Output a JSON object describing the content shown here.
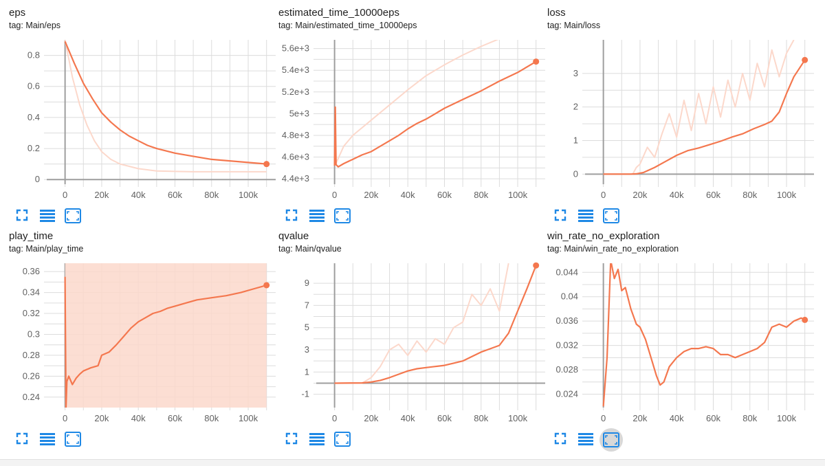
{
  "colors": {
    "smoothed": "#f4774e",
    "raw": "#fcd8cb",
    "grid": "#dcdcdc",
    "axis": "#9e9e9e",
    "toolbar_blue": "#1e88e5"
  },
  "toolbar": {
    "icons": [
      "fit-expand-icon",
      "data-table-icon",
      "fit-domain-icon"
    ]
  },
  "cards": [
    {
      "title": "eps",
      "tag": "tag: Main/eps",
      "chart_data": {
        "type": "line",
        "x_ticks": [
          "0",
          "20k",
          "40k",
          "60k",
          "80k",
          "100k"
        ],
        "y_ticks": [
          "0",
          "0.2",
          "0.4",
          "0.6",
          "0.8"
        ],
        "xlim": [
          -10000,
          115000
        ],
        "ylim": [
          -0.03,
          0.9
        ],
        "series": [
          {
            "role": "raw",
            "x": [
              0,
              4000,
              8000,
              12000,
              16000,
              20000,
              25000,
              30000,
              40000,
              50000,
              70000,
              90000,
              110000
            ],
            "y": [
              0.9,
              0.66,
              0.48,
              0.35,
              0.25,
              0.18,
              0.13,
              0.1,
              0.07,
              0.055,
              0.05,
              0.05,
              0.05
            ]
          },
          {
            "role": "smoothed",
            "x": [
              0,
              5000,
              10000,
              15000,
              20000,
              25000,
              30000,
              35000,
              40000,
              45000,
              50000,
              60000,
              70000,
              80000,
              90000,
              100000,
              110000
            ],
            "y": [
              0.89,
              0.75,
              0.62,
              0.52,
              0.43,
              0.37,
              0.32,
              0.28,
              0.25,
              0.22,
              0.2,
              0.17,
              0.15,
              0.13,
              0.12,
              0.11,
              0.1
            ]
          }
        ]
      }
    },
    {
      "title": "estimated_time_10000eps",
      "tag": "tag: Main/estimated_time_10000eps",
      "chart_data": {
        "type": "line",
        "x_ticks": [
          "0",
          "20k",
          "40k",
          "60k",
          "80k",
          "100k"
        ],
        "y_ticks": [
          "4.4e+3",
          "4.6e+3",
          "4.8e+3",
          "5e+3",
          "5.2e+3",
          "5.4e+3",
          "5.6e+3"
        ],
        "x_tick_values": [
          0,
          20000,
          40000,
          60000,
          80000,
          100000
        ],
        "y_tick_values": [
          4400,
          4600,
          4800,
          5000,
          5200,
          5400,
          5600
        ],
        "xlim": [
          -10000,
          115000
        ],
        "ylim": [
          4350,
          5680
        ],
        "series": [
          {
            "role": "raw",
            "x": [
              0,
              1000,
              5000,
              10000,
              20000,
              30000,
              40000,
              50000,
              60000,
              70000,
              80000,
              90000
            ],
            "y": [
              4530,
              4550,
              4700,
              4800,
              4940,
              5080,
              5220,
              5350,
              5450,
              5540,
              5620,
              5690
            ]
          },
          {
            "role": "smoothed",
            "x": [
              0,
              400,
              800,
              2000,
              5000,
              10000,
              15000,
              20000,
              25000,
              30000,
              35000,
              40000,
              45000,
              50000,
              55000,
              60000,
              70000,
              80000,
              90000,
              100000,
              110000
            ],
            "y": [
              4520,
              5060,
              4530,
              4510,
              4540,
              4580,
              4620,
              4650,
              4700,
              4750,
              4800,
              4860,
              4910,
              4950,
              5000,
              5050,
              5130,
              5210,
              5300,
              5380,
              5480
            ]
          }
        ]
      }
    },
    {
      "title": "loss",
      "tag": "tag: Main/loss",
      "chart_data": {
        "type": "line",
        "x_ticks": [
          "0",
          "20k",
          "40k",
          "60k",
          "80k",
          "100k"
        ],
        "y_ticks": [
          "0",
          "1",
          "2",
          "3"
        ],
        "xlim": [
          -10000,
          115000
        ],
        "ylim": [
          -0.3,
          4.0
        ],
        "series": [
          {
            "role": "raw",
            "x": [
              0,
              16000,
              18000,
              20000,
              24000,
              28000,
              32000,
              36000,
              40000,
              44000,
              48000,
              52000,
              56000,
              60000,
              64000,
              68000,
              72000,
              76000,
              80000,
              84000,
              88000,
              92000,
              96000,
              100000,
              104000
            ],
            "y": [
              0,
              0,
              0.2,
              0.3,
              0.8,
              0.5,
              1.2,
              1.8,
              1.1,
              2.2,
              1.3,
              2.4,
              1.5,
              2.6,
              1.7,
              2.8,
              2.0,
              3.0,
              2.2,
              3.3,
              2.6,
              3.7,
              2.9,
              3.6,
              4.0
            ]
          },
          {
            "role": "smoothed",
            "x": [
              0,
              15000,
              18000,
              22000,
              28000,
              34000,
              40000,
              46000,
              52000,
              58000,
              64000,
              70000,
              76000,
              82000,
              88000,
              92000,
              96000,
              100000,
              104000,
              110000
            ],
            "y": [
              0,
              0,
              0.01,
              0.05,
              0.2,
              0.38,
              0.56,
              0.7,
              0.78,
              0.88,
              0.98,
              1.1,
              1.2,
              1.35,
              1.48,
              1.58,
              1.85,
              2.4,
              2.9,
              3.4
            ]
          }
        ]
      }
    },
    {
      "title": "play_time",
      "tag": "tag: Main/play_time",
      "chart_data": {
        "type": "line",
        "x_ticks": [
          "0",
          "20k",
          "40k",
          "60k",
          "80k",
          "100k"
        ],
        "y_ticks": [
          "0.24",
          "0.26",
          "0.28",
          "0.3",
          "0.32",
          "0.34",
          "0.36"
        ],
        "xlim": [
          -10000,
          115000
        ],
        "ylim": [
          0.23,
          0.368
        ],
        "series": [
          {
            "role": "raw",
            "x": [
              0,
              110000
            ],
            "y": [
              0.23,
              0.368
            ],
            "fill": true
          },
          {
            "role": "smoothed",
            "x": [
              0,
              500,
              1000,
              2000,
              4000,
              6000,
              8000,
              10000,
              14000,
              18000,
              20000,
              24000,
              28000,
              32000,
              36000,
              40000,
              44000,
              48000,
              52000,
              56000,
              60000,
              66000,
              72000,
              80000,
              88000,
              96000,
              104000,
              110000
            ],
            "y": [
              0.355,
              0.23,
              0.255,
              0.26,
              0.252,
              0.258,
              0.262,
              0.265,
              0.268,
              0.27,
              0.28,
              0.283,
              0.29,
              0.298,
              0.306,
              0.312,
              0.316,
              0.32,
              0.322,
              0.325,
              0.327,
              0.33,
              0.333,
              0.335,
              0.337,
              0.34,
              0.344,
              0.347
            ]
          }
        ]
      }
    },
    {
      "title": "qvalue",
      "tag": "tag: Main/qvalue",
      "chart_data": {
        "type": "line",
        "x_ticks": [
          "0",
          "20k",
          "40k",
          "60k",
          "80k",
          "100k"
        ],
        "y_ticks": [
          "-1",
          "1",
          "3",
          "5",
          "7",
          "9"
        ],
        "xlim": [
          -10000,
          115000
        ],
        "ylim": [
          -2.2,
          10.8
        ],
        "series": [
          {
            "role": "raw",
            "x": [
              0,
              15000,
              20000,
              25000,
              30000,
              35000,
              40000,
              45000,
              50000,
              55000,
              60000,
              65000,
              70000,
              75000,
              80000,
              85000,
              90000,
              95000
            ],
            "y": [
              0,
              0,
              0.5,
              1.5,
              3.0,
              3.5,
              2.5,
              3.8,
              2.8,
              4.0,
              3.5,
              5.0,
              5.5,
              8.0,
              7.0,
              8.5,
              6.5,
              10.8
            ]
          },
          {
            "role": "smoothed",
            "x": [
              0,
              15000,
              20000,
              25000,
              30000,
              35000,
              40000,
              45000,
              50000,
              55000,
              60000,
              65000,
              70000,
              75000,
              80000,
              85000,
              90000,
              95000,
              100000,
              105000,
              110000
            ],
            "y": [
              0,
              0.02,
              0.1,
              0.25,
              0.5,
              0.8,
              1.1,
              1.3,
              1.4,
              1.5,
              1.6,
              1.8,
              2.0,
              2.4,
              2.8,
              3.1,
              3.4,
              4.5,
              6.5,
              8.5,
              10.6
            ]
          }
        ]
      }
    },
    {
      "title": "win_rate_no_exploration",
      "tag": "tag: Main/win_rate_no_exploration",
      "chart_data": {
        "type": "line",
        "x_ticks": [
          "0",
          "20k",
          "40k",
          "60k",
          "80k",
          "100k"
        ],
        "y_ticks": [
          "0.024",
          "0.028",
          "0.032",
          "0.036",
          "0.04",
          "0.044"
        ],
        "xlim": [
          -10000,
          115000
        ],
        "ylim": [
          0.0218,
          0.0455
        ],
        "series": [
          {
            "role": "smoothed",
            "x": [
              0,
              2000,
              4000,
              6000,
              8000,
              10000,
              12000,
              15000,
              18000,
              20000,
              23000,
              26000,
              29000,
              31000,
              33000,
              36000,
              40000,
              44000,
              48000,
              52000,
              56000,
              60000,
              64000,
              68000,
              72000,
              76000,
              80000,
              84000,
              88000,
              92000,
              96000,
              100000,
              104000,
              108000,
              110000
            ],
            "y": [
              0.022,
              0.03,
              0.046,
              0.043,
              0.0445,
              0.041,
              0.0415,
              0.038,
              0.0355,
              0.035,
              0.033,
              0.03,
              0.027,
              0.0255,
              0.026,
              0.0285,
              0.03,
              0.031,
              0.0315,
              0.0315,
              0.0318,
              0.0315,
              0.0305,
              0.0305,
              0.03,
              0.0305,
              0.031,
              0.0315,
              0.0325,
              0.035,
              0.0355,
              0.035,
              0.036,
              0.0365,
              0.0362
            ]
          }
        ]
      }
    }
  ]
}
